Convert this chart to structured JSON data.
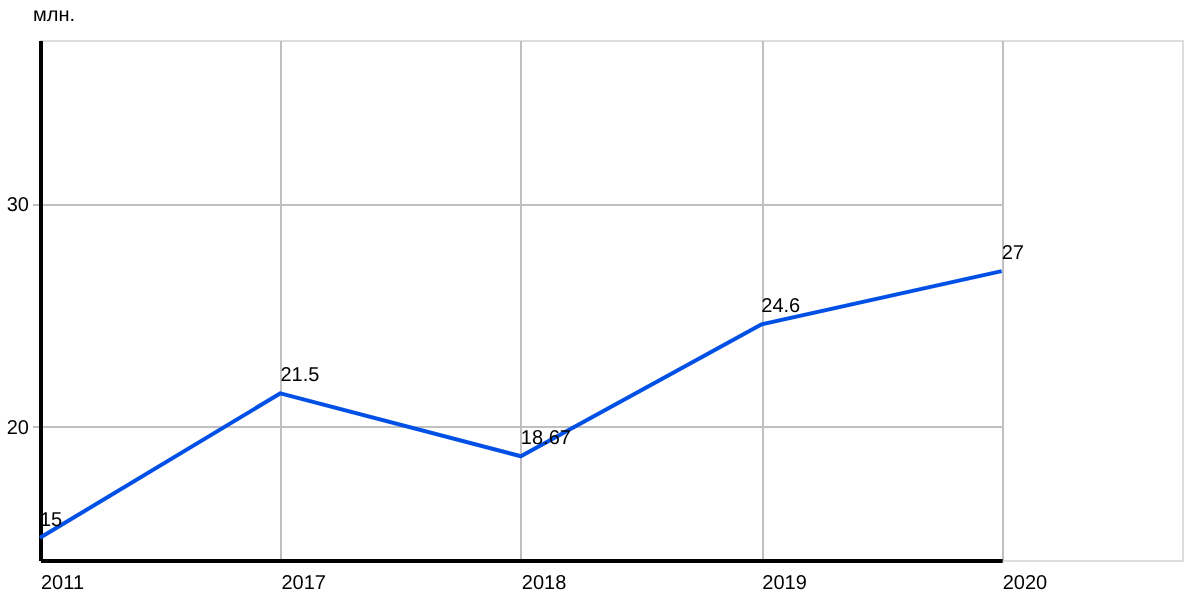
{
  "chart_data": {
    "type": "line",
    "ylabel": "млн.",
    "categories": [
      "2011",
      "2017",
      "2018",
      "2019",
      "2020"
    ],
    "series": [
      {
        "color": "#0050e6",
        "values": [
          15,
          21.5,
          18.67,
          24.6,
          27
        ]
      }
    ],
    "ylim": [
      14,
      37.4
    ],
    "yticks": [
      20,
      30
    ],
    "grid": true,
    "data_labels": true,
    "marker": "none",
    "line_style": "solid"
  }
}
